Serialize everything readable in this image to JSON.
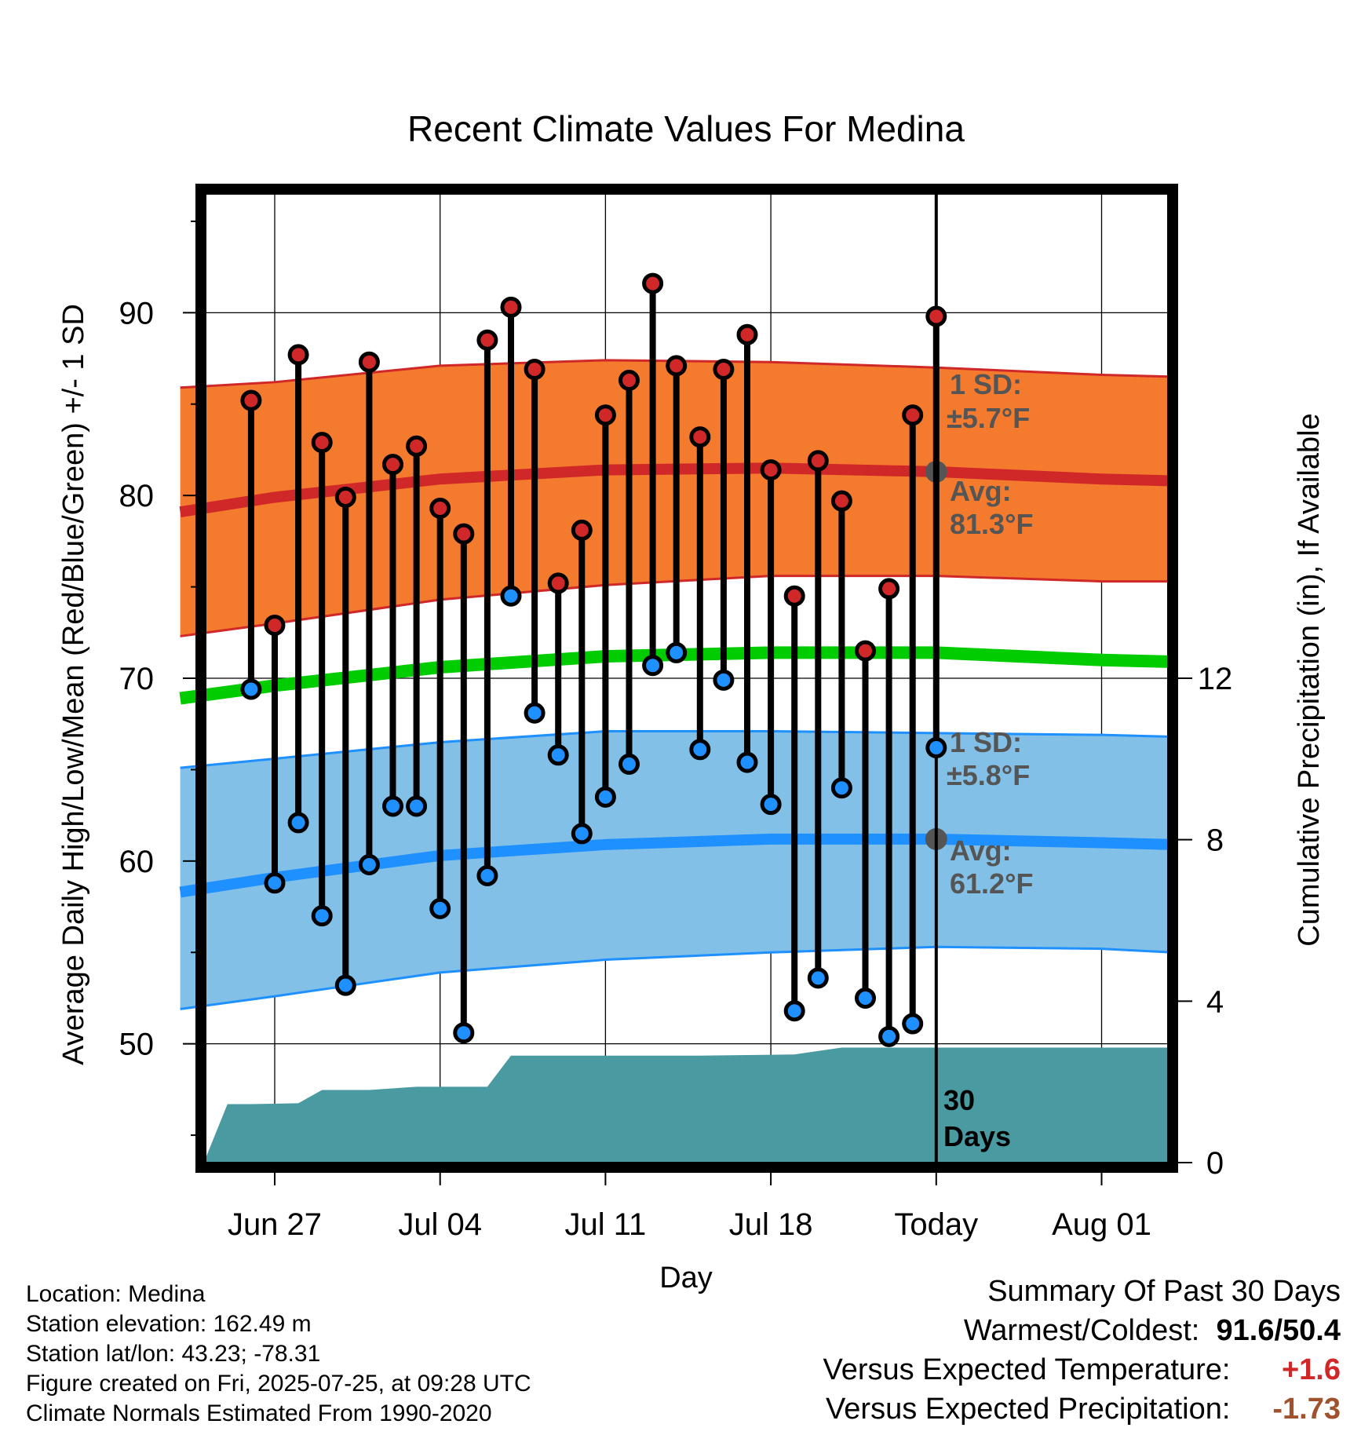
{
  "chart_data": {
    "type": "line",
    "title": "Recent Climate Values For Medina",
    "xlabel": "Day",
    "ylabel": "Average Daily High/Low/Mean (Red/Blue/Green) +/- 1 SD",
    "y2label": "Cumulative Precipitation (in), If Available",
    "x_tick_labels": [
      "Jun 27",
      "Jul 04",
      "Jul 11",
      "Jul 18",
      "Today",
      "Aug 01"
    ],
    "ylim": [
      43.5,
      96.5
    ],
    "y_ticks": [
      50,
      60,
      70,
      80,
      90
    ],
    "y2lim": [
      0,
      24
    ],
    "y2_ticks": [
      0,
      4,
      8,
      12
    ],
    "grid": true,
    "dates": [
      "2025-06-26",
      "2025-06-27",
      "2025-06-28",
      "2025-06-29",
      "2025-06-30",
      "2025-07-01",
      "2025-07-02",
      "2025-07-03",
      "2025-07-04",
      "2025-07-05",
      "2025-07-06",
      "2025-07-07",
      "2025-07-08",
      "2025-07-09",
      "2025-07-10",
      "2025-07-11",
      "2025-07-12",
      "2025-07-13",
      "2025-07-14",
      "2025-07-15",
      "2025-07-16",
      "2025-07-17",
      "2025-07-18",
      "2025-07-19",
      "2025-07-20",
      "2025-07-21",
      "2025-07-22",
      "2025-07-23",
      "2025-07-24",
      "2025-07-25"
    ],
    "daily_high": [
      85.2,
      72.9,
      87.7,
      82.9,
      79.9,
      87.3,
      81.7,
      82.7,
      79.3,
      77.9,
      88.5,
      90.3,
      86.9,
      75.2,
      78.1,
      84.4,
      86.3,
      91.6,
      87.1,
      83.2,
      86.9,
      88.8,
      81.4,
      74.5,
      81.9,
      79.7,
      71.5,
      74.9,
      84.4,
      89.8
    ],
    "daily_low": [
      69.4,
      58.8,
      62.1,
      57.0,
      53.2,
      59.8,
      63.0,
      63.0,
      57.4,
      50.6,
      59.2,
      74.5,
      68.1,
      65.8,
      61.5,
      63.5,
      65.3,
      70.7,
      71.4,
      66.1,
      69.9,
      65.4,
      63.1,
      51.8,
      53.6,
      64.0,
      52.5,
      50.4,
      51.1,
      66.2
    ],
    "normal_high": {
      "dates": [
        "2025-06-23",
        "2025-06-27",
        "2025-07-04",
        "2025-07-11",
        "2025-07-18",
        "2025-07-25",
        "2025-08-01",
        "2025-08-04"
      ],
      "mean": [
        79.1,
        79.9,
        80.9,
        81.4,
        81.5,
        81.3,
        80.9,
        80.8
      ],
      "upper": [
        85.9,
        86.2,
        87.1,
        87.4,
        87.3,
        87.0,
        86.6,
        86.5
      ],
      "lower": [
        72.3,
        73.0,
        74.3,
        75.1,
        75.6,
        75.6,
        75.3,
        75.3
      ]
    },
    "normal_low": {
      "dates": [
        "2025-06-23",
        "2025-06-27",
        "2025-07-04",
        "2025-07-11",
        "2025-07-18",
        "2025-07-25",
        "2025-08-01",
        "2025-08-04"
      ],
      "mean": [
        58.3,
        59.1,
        60.3,
        60.9,
        61.2,
        61.2,
        61.0,
        60.9
      ],
      "upper": [
        65.1,
        65.6,
        66.5,
        67.1,
        67.1,
        67.0,
        66.9,
        66.8
      ],
      "lower": [
        51.9,
        52.6,
        53.9,
        54.6,
        55.0,
        55.3,
        55.2,
        55.0
      ]
    },
    "normal_mean": {
      "dates": [
        "2025-06-23",
        "2025-06-27",
        "2025-07-04",
        "2025-07-11",
        "2025-07-18",
        "2025-07-25",
        "2025-08-01",
        "2025-08-04"
      ],
      "values": [
        68.9,
        69.6,
        70.6,
        71.2,
        71.4,
        71.4,
        71.0,
        70.9
      ]
    },
    "precipitation_cumulative": {
      "dates": [
        "2025-06-24",
        "2025-06-25",
        "2025-06-26",
        "2025-06-28",
        "2025-06-29",
        "2025-07-01",
        "2025-07-03",
        "2025-07-06",
        "2025-07-07",
        "2025-07-11",
        "2025-07-15",
        "2025-07-19",
        "2025-07-21",
        "2025-07-25",
        "2025-08-04"
      ],
      "values": [
        0.0,
        1.45,
        1.45,
        1.47,
        1.8,
        1.8,
        1.88,
        1.88,
        2.65,
        2.65,
        2.65,
        2.68,
        2.85,
        2.85,
        2.85
      ]
    },
    "annotations": {
      "high_sd": "1 SD:",
      "high_sd_value": "±5.7°F",
      "high_avg": "Avg:",
      "high_avg_value": "81.3°F",
      "low_sd": "1 SD:",
      "low_sd_value": "±5.8°F",
      "low_avg": "Avg:",
      "low_avg_value": "61.2°F",
      "window_line1": "30",
      "window_line2": "Days"
    },
    "colors": {
      "high_band": "#f47a2e",
      "high_line": "#d02828",
      "low_band": "#82c0e8",
      "low_line": "#1e90ff",
      "mean_line": "#00cc00",
      "precip": "#4a9aa2",
      "high_marker": "#d02828",
      "low_marker": "#1e90ff"
    }
  },
  "footer": {
    "location": "Location: Medina",
    "elevation": "Station elevation: 162.49 m",
    "latlon": "Station lat/lon: 43.23; -78.31",
    "created": "Figure created on Fri, 2025-07-25, at 09:28 UTC",
    "normals": "Climate Normals Estimated From 1990-2020"
  },
  "summary": {
    "heading": "Summary Of Past 30 Days",
    "warm_cold_label": "Warmest/Coldest:",
    "warm_value": "91.6",
    "slash": "/",
    "cold_value": "50.4",
    "temp_label": "Versus Expected Temperature:",
    "temp_value": "+1.6",
    "temp_color": "#d02828",
    "precip_label": "Versus Expected Precipitation:",
    "precip_value": "-1.73",
    "precip_color": "#a0522d"
  }
}
